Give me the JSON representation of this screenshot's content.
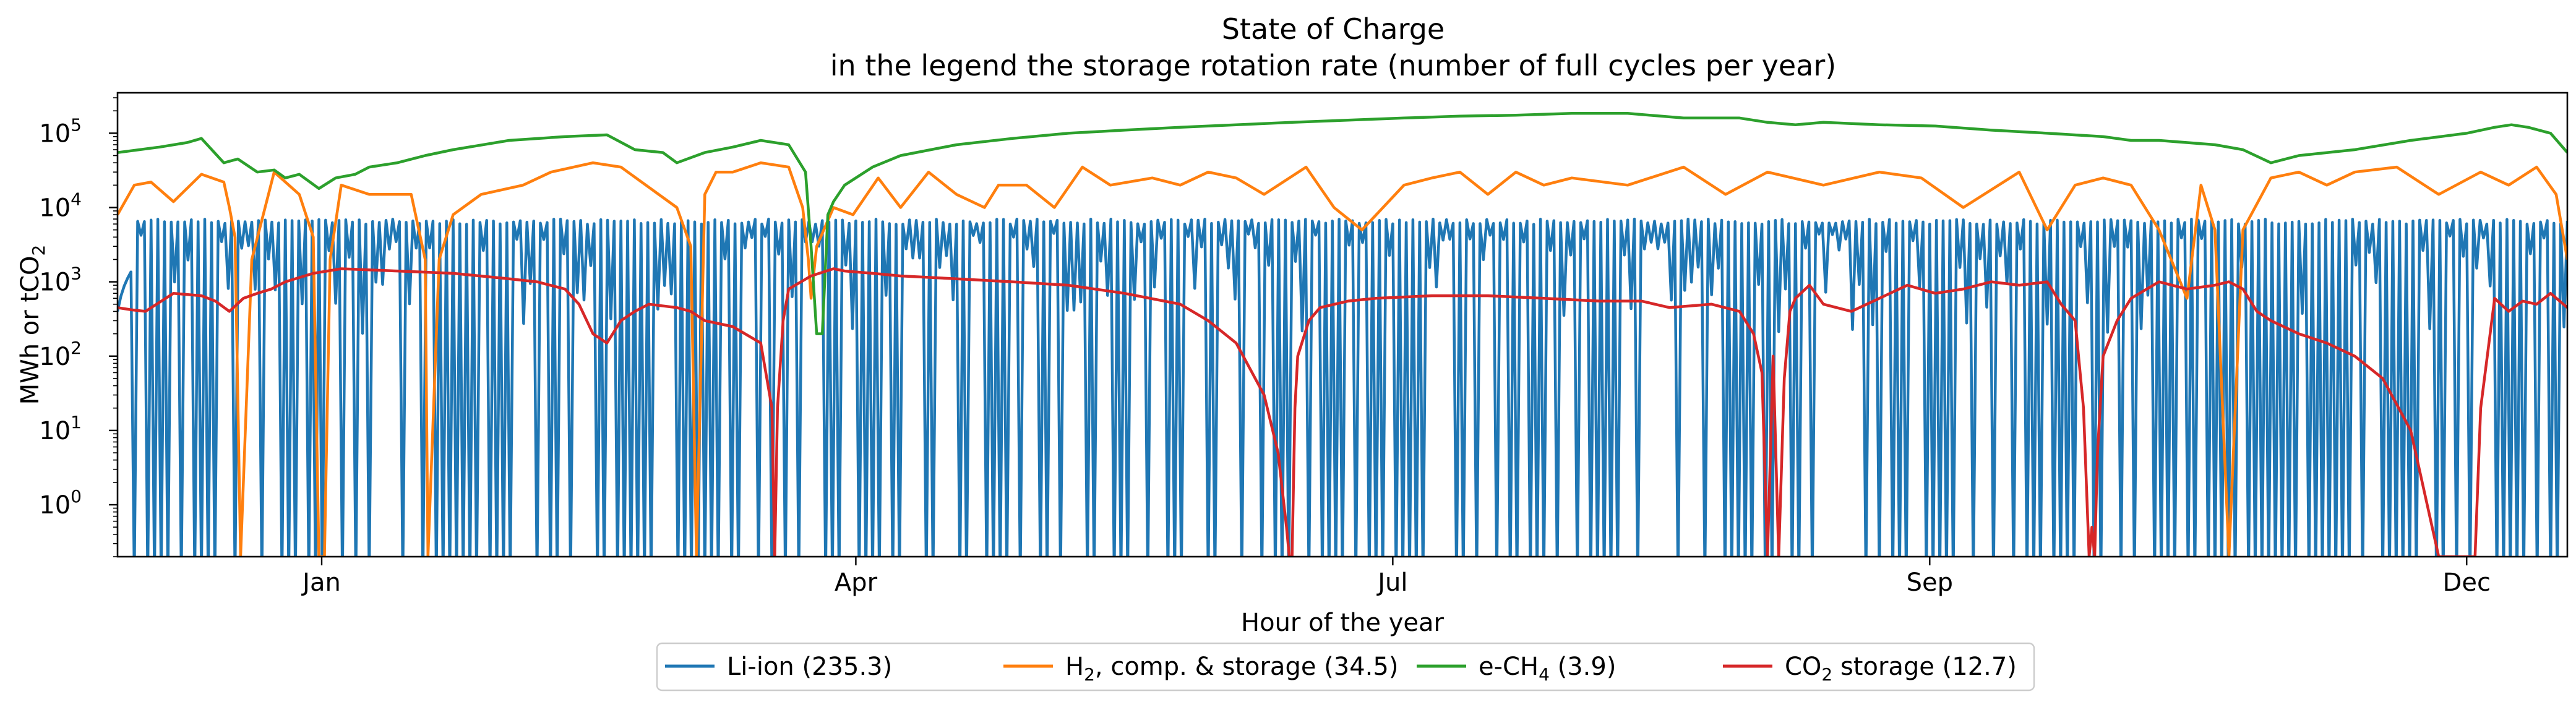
{
  "chart_data": {
    "type": "line",
    "title": "State of Charge",
    "subtitle": "in the legend the storage rotation rate (number of full cycles per year)",
    "xlabel": "Hour of the year",
    "ylabel": "MWh or tCO",
    "ylabel_sub": "2",
    "yscale": "log",
    "xlim": [
      0,
      8760
    ],
    "ylim": [
      0.2,
      350000
    ],
    "x_ticks": [
      {
        "label": "Jan",
        "value": 730
      },
      {
        "label": "Apr",
        "value": 2640
      },
      {
        "label": "Jul",
        "value": 4560
      },
      {
        "label": "Sep",
        "value": 6480
      },
      {
        "label": "Dec",
        "value": 8400
      }
    ],
    "y_ticks": [
      {
        "base": "10",
        "exp": "0",
        "value": 1
      },
      {
        "base": "10",
        "exp": "1",
        "value": 10
      },
      {
        "base": "10",
        "exp": "2",
        "value": 100
      },
      {
        "base": "10",
        "exp": "3",
        "value": 1000
      },
      {
        "base": "10",
        "exp": "4",
        "value": 10000
      },
      {
        "base": "10",
        "exp": "5",
        "value": 100000
      }
    ],
    "grid": false,
    "legend_position": "bottom-center",
    "series": [
      {
        "key": "liion",
        "color": "#1f77b4",
        "legend_label": "Li-ion (235.3)",
        "legend_label_parts": [
          "Li-ion (235.3)",
          "",
          ""
        ],
        "behavior": "daily-cycling",
        "cycles_per_year": 235.3,
        "peak_value": 7000
      },
      {
        "key": "h2",
        "color": "#ff7f0e",
        "legend_label_parts": [
          "H",
          "2",
          ", comp. & storage (34.5)"
        ],
        "cycles_per_year": 34.5,
        "x": [
          0,
          60,
          120,
          200,
          300,
          380,
          400,
          420,
          440,
          480,
          560,
          650,
          700,
          720,
          740,
          760,
          800,
          900,
          1050,
          1100,
          1110,
          1150,
          1200,
          1300,
          1450,
          1550,
          1700,
          1800,
          2000,
          2050,
          2070,
          2100,
          2140,
          2200,
          2300,
          2400,
          2450,
          2470,
          2480,
          2500,
          2560,
          2630,
          2720,
          2800,
          2900,
          3000,
          3100,
          3150,
          3250,
          3350,
          3450,
          3550,
          3700,
          3800,
          3900,
          4000,
          4100,
          4250,
          4350,
          4450,
          4600,
          4700,
          4800,
          4900,
          5000,
          5100,
          5200,
          5400,
          5600,
          5750,
          5900,
          6100,
          6300,
          6450,
          6600,
          6800,
          6900,
          7000,
          7100,
          7200,
          7300,
          7400,
          7450,
          7500,
          7550,
          7600,
          7700,
          7800,
          7900,
          8000,
          8150,
          8300,
          8450,
          8550,
          8650,
          8720,
          8760
        ],
        "values": [
          8000,
          20000,
          22000,
          12000,
          28000,
          22000,
          10000,
          4000,
          0.2,
          2000,
          30000,
          15000,
          4000,
          0.2,
          0.2,
          2000,
          20000,
          15000,
          15000,
          2000,
          0.2,
          2000,
          8000,
          15000,
          20000,
          30000,
          40000,
          35000,
          10000,
          3000,
          0.2,
          15000,
          30000,
          30000,
          40000,
          35000,
          10000,
          2000,
          600,
          3000,
          10000,
          8000,
          25000,
          10000,
          30000,
          15000,
          10000,
          20000,
          20000,
          10000,
          35000,
          20000,
          25000,
          20000,
          30000,
          25000,
          15000,
          35000,
          10000,
          5000,
          20000,
          25000,
          30000,
          15000,
          30000,
          20000,
          25000,
          20000,
          35000,
          15000,
          30000,
          20000,
          30000,
          25000,
          10000,
          30000,
          5000,
          20000,
          25000,
          20000,
          5000,
          600,
          20000,
          5000,
          0.2,
          5000,
          25000,
          30000,
          20000,
          30000,
          35000,
          15000,
          30000,
          20000,
          35000,
          15000,
          2000
        ]
      },
      {
        "key": "ech4",
        "color": "#2ca02c",
        "legend_label_parts": [
          "e-CH",
          "4",
          " (3.9)"
        ],
        "cycles_per_year": 3.9,
        "x": [
          0,
          150,
          250,
          300,
          380,
          430,
          500,
          560,
          600,
          650,
          720,
          780,
          850,
          900,
          1000,
          1100,
          1200,
          1400,
          1600,
          1750,
          1850,
          1950,
          2000,
          2100,
          2200,
          2300,
          2400,
          2460,
          2480,
          2500,
          2520,
          2540,
          2560,
          2600,
          2700,
          2800,
          3000,
          3200,
          3400,
          3600,
          3800,
          4000,
          4200,
          4400,
          4600,
          4800,
          5000,
          5200,
          5400,
          5600,
          5800,
          5900,
          6000,
          6100,
          6300,
          6500,
          6700,
          6900,
          7100,
          7200,
          7300,
          7500,
          7600,
          7700,
          7800,
          8000,
          8200,
          8400,
          8500,
          8560,
          8620,
          8700,
          8760
        ],
        "values": [
          55000,
          65000,
          75000,
          85000,
          40000,
          45000,
          30000,
          32000,
          25000,
          28000,
          18000,
          25000,
          28000,
          35000,
          40000,
          50000,
          60000,
          80000,
          90000,
          95000,
          60000,
          55000,
          40000,
          55000,
          65000,
          80000,
          70000,
          30000,
          3000,
          200,
          200,
          8000,
          12000,
          20000,
          35000,
          50000,
          70000,
          85000,
          100000,
          110000,
          120000,
          130000,
          140000,
          150000,
          160000,
          170000,
          175000,
          185000,
          185000,
          160000,
          160000,
          140000,
          130000,
          140000,
          130000,
          125000,
          110000,
          100000,
          90000,
          80000,
          80000,
          70000,
          60000,
          40000,
          50000,
          60000,
          80000,
          100000,
          120000,
          130000,
          120000,
          100000,
          55000
        ]
      },
      {
        "key": "co2",
        "color": "#d62728",
        "legend_label_parts": [
          "CO",
          "2",
          " storage (12.7)"
        ],
        "cycles_per_year": 12.7,
        "x": [
          0,
          50,
          100,
          200,
          300,
          350,
          400,
          450,
          500,
          550,
          600,
          700,
          800,
          1000,
          1200,
          1400,
          1500,
          1600,
          1650,
          1700,
          1750,
          1800,
          1850,
          1900,
          2000,
          2050,
          2100,
          2200,
          2300,
          2340,
          2350,
          2360,
          2380,
          2400,
          2480,
          2560,
          2600,
          2700,
          2800,
          3000,
          3200,
          3400,
          3600,
          3800,
          3900,
          4000,
          4100,
          4150,
          4180,
          4190,
          4200,
          4210,
          4220,
          4260,
          4300,
          4400,
          4500,
          4700,
          4900,
          5100,
          5300,
          5450,
          5550,
          5700,
          5800,
          5850,
          5880,
          5900,
          5920,
          5940,
          5960,
          5980,
          6000,
          6050,
          6100,
          6200,
          6300,
          6400,
          6500,
          6600,
          6700,
          6800,
          6900,
          6950,
          7000,
          7030,
          7050,
          7060,
          7070,
          7080,
          7100,
          7150,
          7200,
          7300,
          7400,
          7500,
          7550,
          7600,
          7650,
          7700,
          7800,
          7900,
          8000,
          8100,
          8200,
          8300,
          8400,
          8420,
          8430,
          8450,
          8500,
          8550,
          8600,
          8650,
          8700,
          8760
        ],
        "values": [
          450,
          420,
          400,
          700,
          650,
          550,
          400,
          600,
          700,
          800,
          1000,
          1300,
          1500,
          1400,
          1300,
          1100,
          1000,
          800,
          500,
          200,
          150,
          300,
          400,
          500,
          450,
          400,
          300,
          250,
          150,
          20,
          0.2,
          20,
          300,
          800,
          1200,
          1500,
          1400,
          1300,
          1200,
          1100,
          1000,
          900,
          700,
          500,
          300,
          150,
          30,
          5,
          0.5,
          0.2,
          0.2,
          20,
          100,
          300,
          450,
          550,
          600,
          650,
          650,
          600,
          550,
          550,
          450,
          500,
          400,
          200,
          60,
          0.2,
          100,
          0.2,
          50,
          400,
          600,
          900,
          500,
          400,
          600,
          900,
          700,
          800,
          1000,
          900,
          1000,
          500,
          300,
          20,
          0.2,
          0.5,
          0.2,
          5,
          100,
          300,
          600,
          1000,
          800,
          900,
          1000,
          800,
          400,
          300,
          200,
          150,
          100,
          50,
          10,
          0.2,
          0.2,
          0.2,
          0.2,
          20,
          600,
          400,
          550,
          500,
          700,
          450
        ]
      }
    ]
  }
}
